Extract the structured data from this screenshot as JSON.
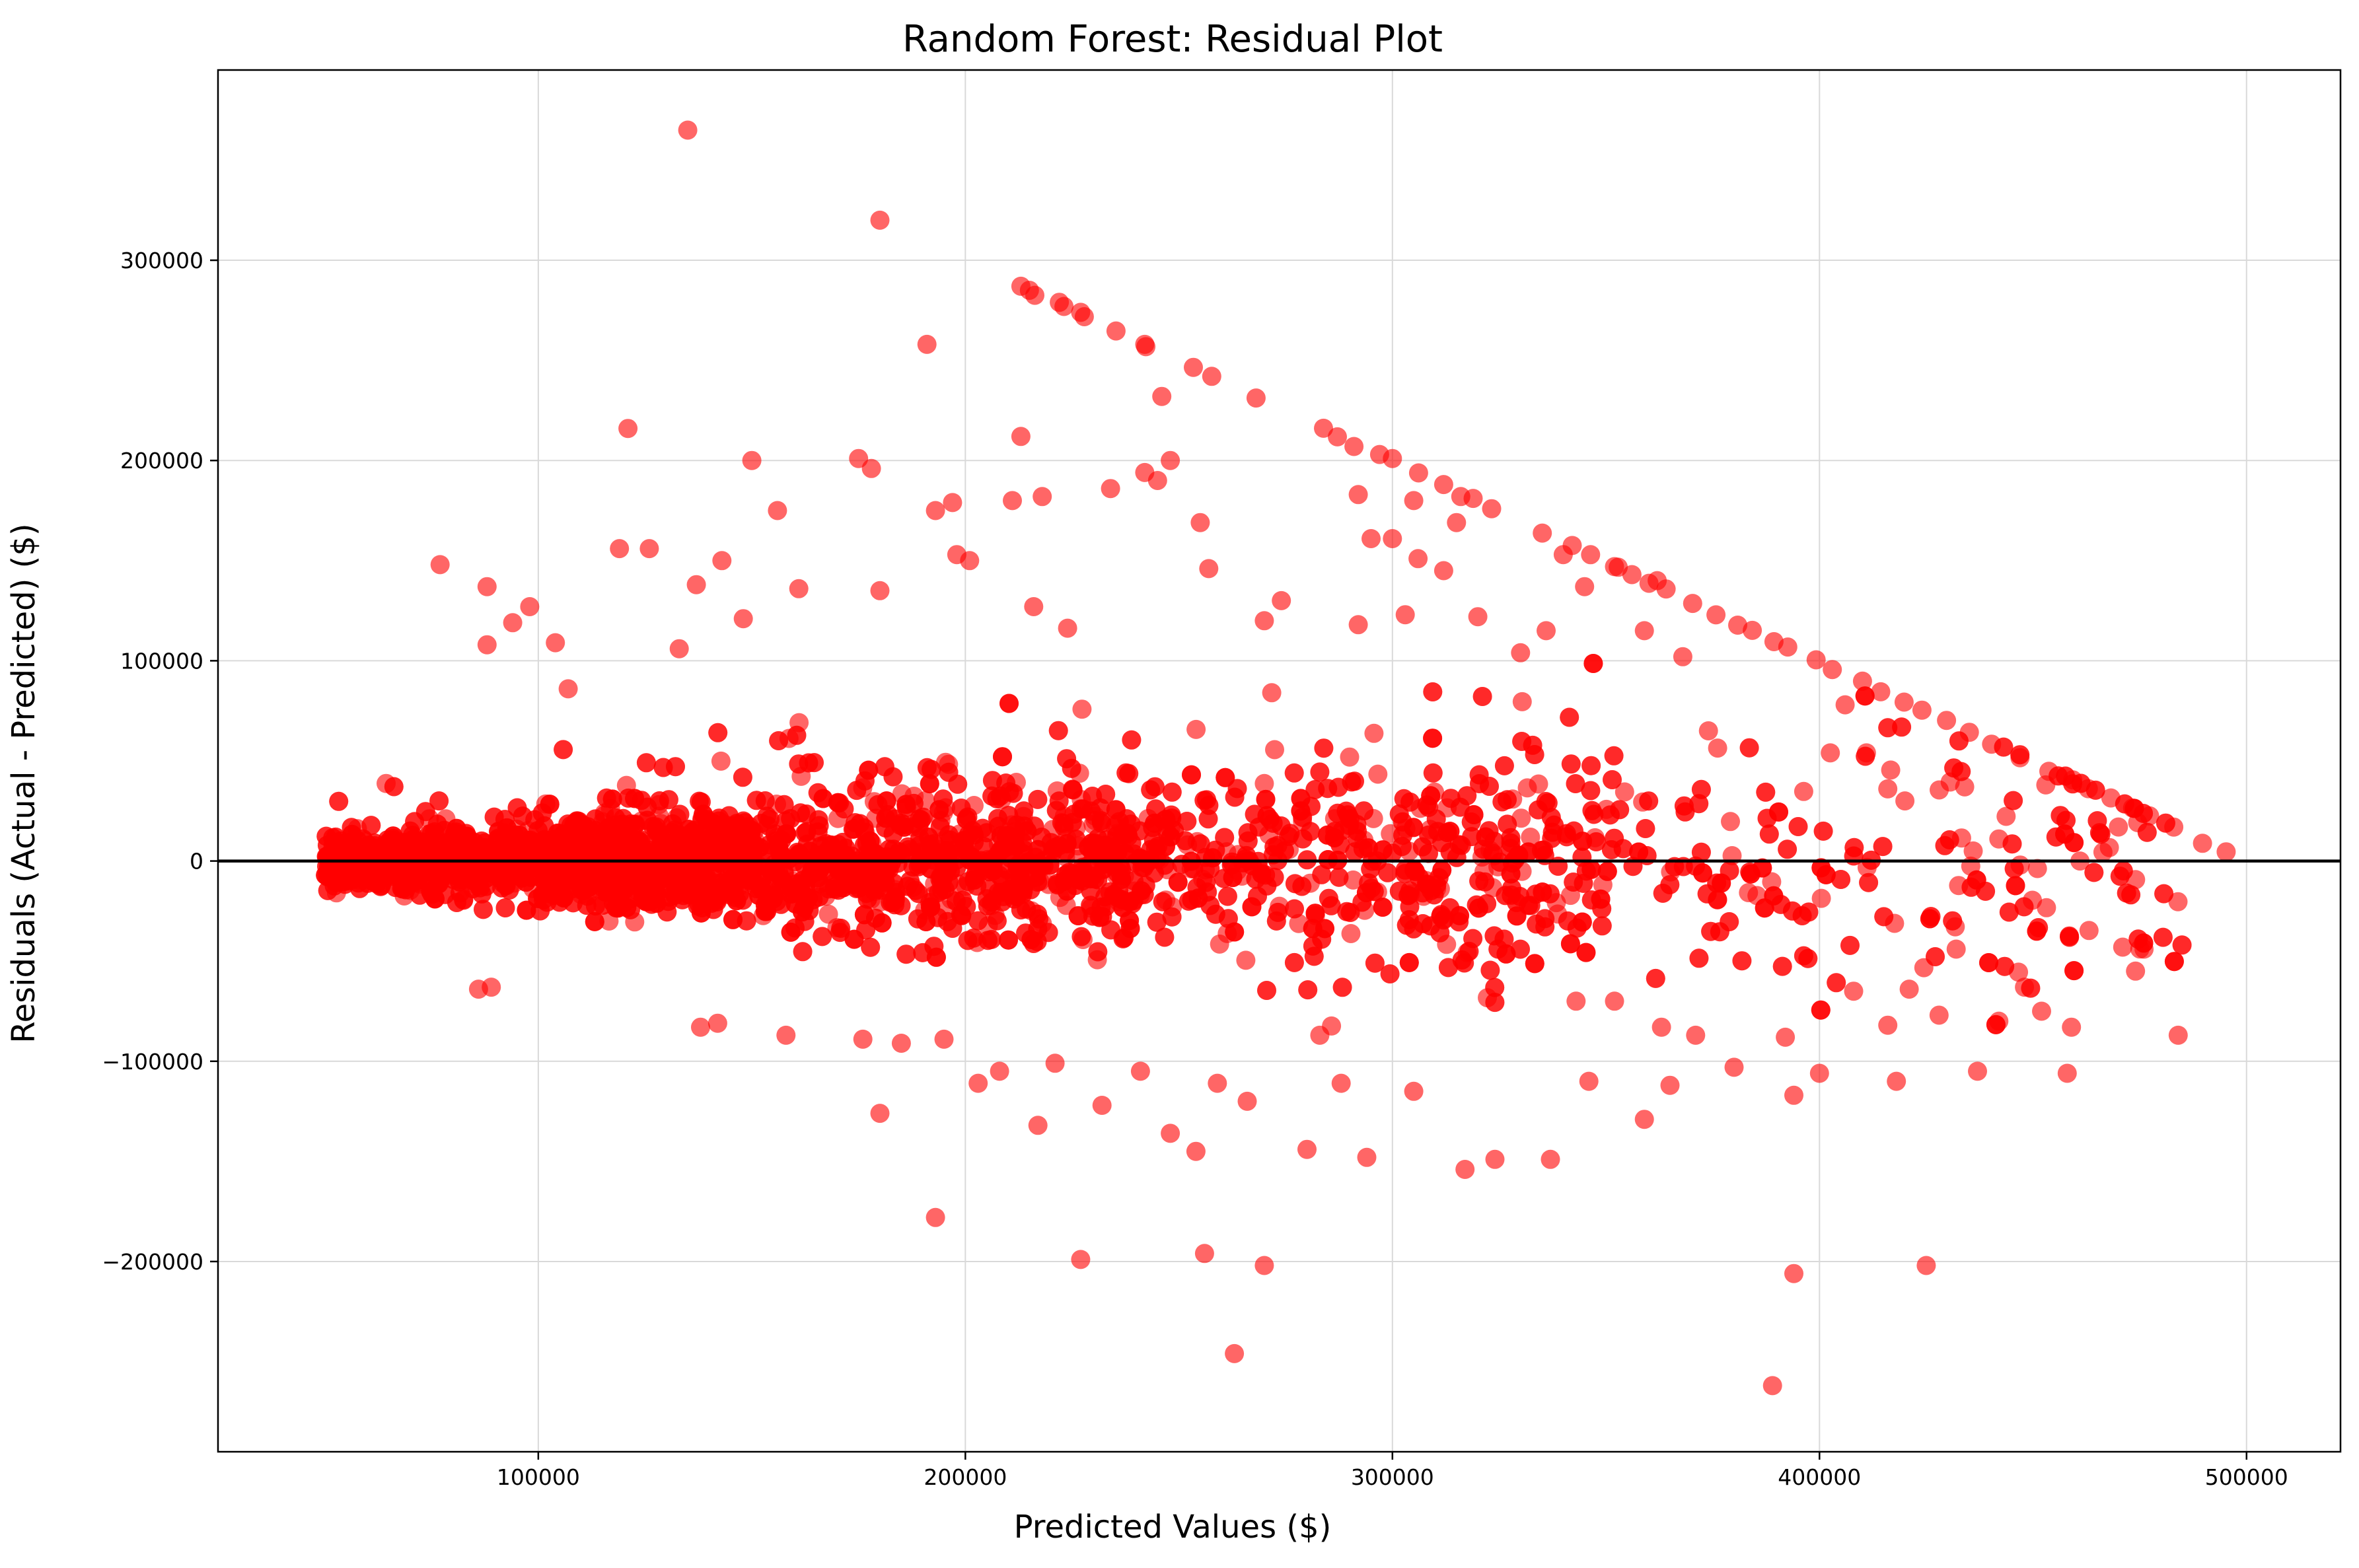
{
  "chart_data": {
    "type": "scatter",
    "title": "Random Forest: Residual Plot",
    "xlabel": "Predicted Values ($)",
    "ylabel": "Residuals (Actual - Predicted) ($)",
    "xlim": [
      25000,
      522000
    ],
    "ylim": [
      -295000,
      395000
    ],
    "xticks": [
      100000,
      200000,
      300000,
      400000,
      500000
    ],
    "yticks": [
      -200000,
      -100000,
      0,
      100000,
      200000,
      300000
    ],
    "xtick_labels": [
      "100000",
      "200000",
      "300000",
      "400000",
      "500000"
    ],
    "ytick_labels": [
      "−200000",
      "−100000",
      "0",
      "100000",
      "200000",
      "300000"
    ],
    "grid": true,
    "reference_line_y": 0,
    "marker_color": "#ff0000",
    "marker_alpha": 0.6,
    "outliers": [
      [
        135000,
        365000
      ],
      [
        180000,
        320000
      ],
      [
        213000,
        287000
      ],
      [
        215000,
        285000
      ],
      [
        222000,
        279000
      ],
      [
        227000,
        274000
      ],
      [
        191000,
        258000
      ],
      [
        242000,
        258000
      ],
      [
        246000,
        232000
      ],
      [
        121000,
        216000
      ],
      [
        213000,
        212000
      ],
      [
        175000,
        201000
      ],
      [
        150000,
        200000
      ],
      [
        178000,
        196000
      ],
      [
        248000,
        200000
      ],
      [
        242000,
        194000
      ],
      [
        245000,
        190000
      ],
      [
        211000,
        180000
      ],
      [
        218000,
        182000
      ],
      [
        234000,
        186000
      ],
      [
        156000,
        175000
      ],
      [
        193000,
        175000
      ],
      [
        197000,
        179000
      ],
      [
        255000,
        169000
      ],
      [
        119000,
        156000
      ],
      [
        126000,
        156000
      ],
      [
        143000,
        150000
      ],
      [
        77000,
        148000
      ],
      [
        137000,
        138000
      ],
      [
        198000,
        153000
      ],
      [
        201000,
        150000
      ],
      [
        88000,
        137000
      ],
      [
        161000,
        136000
      ],
      [
        180000,
        135000
      ],
      [
        98000,
        127000
      ],
      [
        94000,
        119000
      ],
      [
        148000,
        121000
      ],
      [
        104000,
        109000
      ],
      [
        88000,
        108000
      ],
      [
        133000,
        106000
      ],
      [
        107000,
        86000
      ],
      [
        216000,
        127000
      ],
      [
        257000,
        146000
      ],
      [
        274000,
        130000
      ],
      [
        270000,
        120000
      ],
      [
        292000,
        183000
      ],
      [
        291000,
        207000
      ],
      [
        297000,
        203000
      ],
      [
        300000,
        201000
      ],
      [
        305000,
        180000
      ],
      [
        312000,
        188000
      ],
      [
        316000,
        182000
      ],
      [
        315000,
        169000
      ],
      [
        295000,
        161000
      ],
      [
        300000,
        161000
      ],
      [
        306000,
        151000
      ],
      [
        312000,
        145000
      ],
      [
        292000,
        118000
      ],
      [
        303000,
        123000
      ],
      [
        320000,
        122000
      ],
      [
        330000,
        104000
      ],
      [
        336000,
        115000
      ],
      [
        359000,
        115000
      ],
      [
        362000,
        140000
      ],
      [
        180000,
        -126000
      ],
      [
        193000,
        -178000
      ],
      [
        217000,
        -132000
      ],
      [
        227000,
        -199000
      ],
      [
        232000,
        -122000
      ],
      [
        248000,
        -136000
      ],
      [
        254000,
        -145000
      ],
      [
        256000,
        -196000
      ],
      [
        263000,
        -246000
      ],
      [
        270000,
        -202000
      ],
      [
        266000,
        -120000
      ],
      [
        280000,
        -144000
      ],
      [
        294000,
        -148000
      ],
      [
        305000,
        -115000
      ],
      [
        317000,
        -154000
      ],
      [
        324000,
        -149000
      ],
      [
        337000,
        -149000
      ],
      [
        346000,
        -110000
      ],
      [
        359000,
        -129000
      ],
      [
        365000,
        -112000
      ],
      [
        380000,
        -103000
      ],
      [
        389000,
        -262000
      ],
      [
        392000,
        -88000
      ],
      [
        394000,
        -206000
      ],
      [
        394000,
        -117000
      ],
      [
        400000,
        -106000
      ],
      [
        418000,
        -110000
      ],
      [
        425000,
        -202000
      ],
      [
        437000,
        -105000
      ],
      [
        458000,
        -106000
      ],
      [
        484000,
        -87000
      ],
      [
        448000,
        -63000
      ],
      [
        459000,
        -83000
      ],
      [
        471000,
        -43000
      ],
      [
        476000,
        -44000
      ],
      [
        474000,
        -55000
      ],
      [
        442000,
        -80000
      ],
      [
        452000,
        -75000
      ],
      [
        428000,
        -77000
      ],
      [
        432000,
        -44000
      ],
      [
        89000,
        -63000
      ],
      [
        86000,
        -64000
      ],
      [
        138000,
        -83000
      ],
      [
        142000,
        -81000
      ],
      [
        158000,
        -87000
      ],
      [
        176000,
        -89000
      ],
      [
        185000,
        -91000
      ],
      [
        195000,
        -89000
      ],
      [
        203000,
        -111000
      ],
      [
        208000,
        -105000
      ],
      [
        221000,
        -101000
      ],
      [
        241000,
        -105000
      ],
      [
        259000,
        -111000
      ],
      [
        283000,
        -87000
      ],
      [
        288000,
        -111000
      ],
      [
        343000,
        -70000
      ],
      [
        352000,
        -70000
      ],
      [
        363000,
        -83000
      ],
      [
        371000,
        -87000
      ],
      [
        408000,
        -65000
      ],
      [
        416000,
        -82000
      ],
      [
        421000,
        -64000
      ],
      [
        406000,
        78000
      ],
      [
        411000,
        54000
      ],
      [
        416000,
        36000
      ],
      [
        420000,
        30000
      ],
      [
        434000,
        37000
      ],
      [
        436000,
        5000
      ],
      [
        442000,
        11000
      ],
      [
        447000,
        -2000
      ],
      [
        453000,
        38000
      ],
      [
        461000,
        0
      ],
      [
        470000,
        17000
      ],
      [
        374000,
        65000
      ],
      [
        368000,
        102000
      ],
      [
        352000,
        147000
      ],
      [
        340000,
        153000
      ],
      [
        345000,
        137000
      ]
    ]
  }
}
